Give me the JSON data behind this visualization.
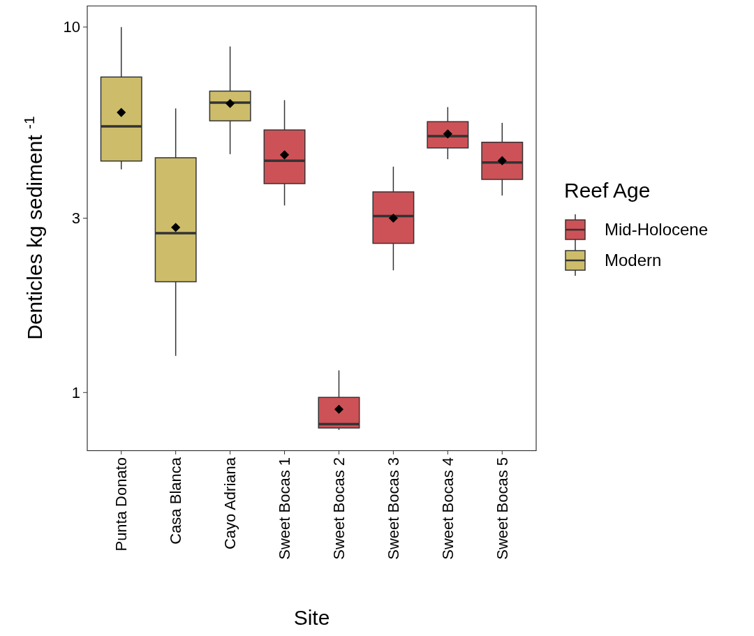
{
  "chart_data": {
    "type": "box",
    "xlabel": "Site",
    "ylabel": "Denticles kg sediment $^{-1}$",
    "legend_title": "Reef Age",
    "legend": "right",
    "log": true,
    "categories": [
      "Punta Donato",
      "Casa Blanca",
      "Cayo Adriana",
      "Sweet Bocas 1",
      "Sweet Bocas 2",
      "Sweet Bocas 3",
      "Sweet Bocas 4",
      "Sweet Bocas 5"
    ],
    "ylim": [
      0.695,
      11.45
    ],
    "yticks": [
      1,
      3,
      10
    ],
    "series": [
      {
        "name": "Mid-Holocene",
        "color": "#cd5257",
        "boxes": [
          null,
          null,
          null,
          {
            "low": 3.25,
            "q1": 3.73,
            "median": 4.31,
            "q3": 5.23,
            "high": 6.31,
            "mean": 4.47
          },
          {
            "low": 0.79,
            "q1": 0.8,
            "median": 0.82,
            "q3": 0.97,
            "high": 1.15,
            "mean": 0.9
          },
          {
            "low": 2.16,
            "q1": 2.56,
            "median": 3.04,
            "q3": 3.54,
            "high": 4.15,
            "mean": 3.0
          },
          {
            "low": 4.35,
            "q1": 4.67,
            "median": 5.03,
            "q3": 5.51,
            "high": 6.04,
            "mean": 5.1
          },
          {
            "low": 3.46,
            "q1": 3.83,
            "median": 4.26,
            "q3": 4.84,
            "high": 5.47,
            "mean": 4.31
          }
        ]
      },
      {
        "name": "Modern",
        "color": "#cdbd6b",
        "boxes": [
          {
            "low": 4.08,
            "q1": 4.3,
            "median": 5.35,
            "q3": 7.3,
            "high": 10,
            "mean": 5.84
          },
          {
            "low": 1.26,
            "q1": 2.01,
            "median": 2.73,
            "q3": 4.39,
            "high": 5.99,
            "mean": 2.83
          },
          {
            "low": 4.49,
            "q1": 5.54,
            "median": 6.21,
            "q3": 6.68,
            "high": 8.85,
            "mean": 6.18
          },
          null,
          null,
          null,
          null,
          null
        ]
      }
    ]
  }
}
